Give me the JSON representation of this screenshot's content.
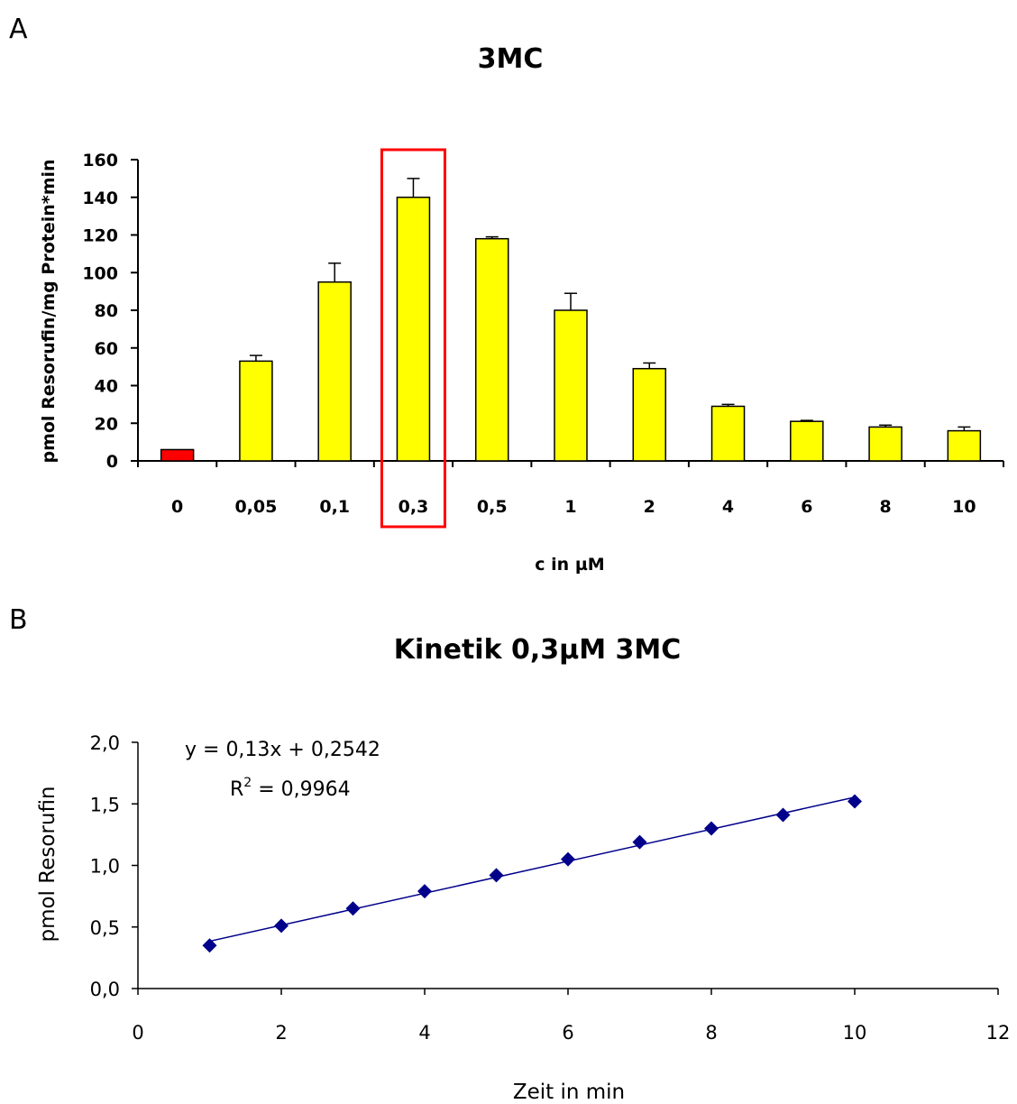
{
  "panel_a_label": "A",
  "panel_b_label": "B",
  "chart_data": [
    {
      "type": "bar",
      "title": "3MC",
      "xlabel": "c in µM",
      "ylabel": "pmol Resorufin/mg Protein*min",
      "categories": [
        "0",
        "0,05",
        "0,1",
        "0,3",
        "0,5",
        "1",
        "2",
        "4",
        "6",
        "8",
        "10"
      ],
      "values": [
        6,
        53,
        95,
        140,
        118,
        80,
        49,
        29,
        21,
        18,
        16
      ],
      "errors": [
        0,
        3,
        10,
        10,
        1,
        9,
        3,
        1,
        0.5,
        1,
        2
      ],
      "bar_colors": [
        "#ff0000",
        "#ffff00",
        "#ffff00",
        "#ffff00",
        "#ffff00",
        "#ffff00",
        "#ffff00",
        "#ffff00",
        "#ffff00",
        "#ffff00",
        "#ffff00"
      ],
      "highlight_category": "0,3",
      "highlight_color": "#ff0000",
      "ylim": [
        0,
        160
      ],
      "yticks": [
        "160",
        "140",
        "120",
        "100",
        "80",
        "60",
        "40",
        "20",
        "0"
      ],
      "ytick_values": [
        160,
        140,
        120,
        100,
        80,
        60,
        40,
        20,
        0
      ],
      "grid": false,
      "legend": "none"
    },
    {
      "type": "scatter",
      "title": "Kinetik 0,3µM 3MC",
      "xlabel": "Zeit in min",
      "ylabel": "pmol Resorufin",
      "x": [
        1,
        2,
        3,
        4,
        5,
        6,
        7,
        8,
        9,
        10
      ],
      "y": [
        0.35,
        0.51,
        0.65,
        0.79,
        0.92,
        1.05,
        1.19,
        1.3,
        1.41,
        1.52
      ],
      "errors": [
        0.02,
        0.02,
        0.03,
        0.03,
        0.03,
        0.04,
        0.04,
        0.04,
        0.04,
        0.04
      ],
      "marker_color": "#00008b",
      "trendline": {
        "slope": 0.13,
        "intercept": 0.2542,
        "x_range": [
          1,
          10
        ],
        "color": "#00008b"
      },
      "equation_text": "y = 0,13x + 0,2542",
      "r2_label": "R",
      "r2_sup": "2",
      "r2_value_text": " = 0,9964",
      "xlim": [
        0,
        12
      ],
      "ylim": [
        0,
        2.0
      ],
      "xticks": [
        "0",
        "2",
        "4",
        "6",
        "8",
        "10",
        "12"
      ],
      "xtick_values": [
        0,
        2,
        4,
        6,
        8,
        10,
        12
      ],
      "yticks": [
        "2,0",
        "1,5",
        "1,0",
        "0,5",
        "0,0"
      ],
      "ytick_values": [
        2.0,
        1.5,
        1.0,
        0.5,
        0.0
      ],
      "grid": false,
      "legend": "none"
    }
  ]
}
